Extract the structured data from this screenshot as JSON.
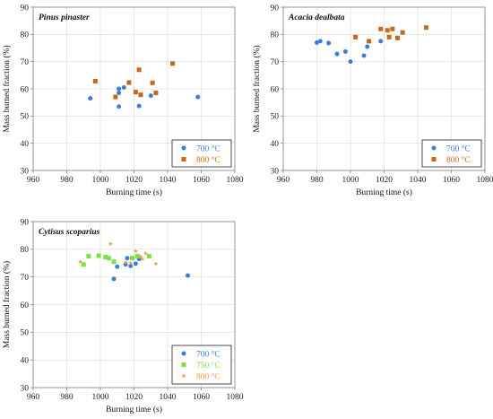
{
  "chart_data": [
    {
      "type": "scatter",
      "title": "Pinus pinaster",
      "xlabel": "Burning time (s)",
      "ylabel": "Mass burned fraction (%)",
      "xlim": [
        960,
        1080
      ],
      "ylim": [
        30,
        90
      ],
      "xticks": [
        "960",
        "980",
        "1000",
        "1020",
        "1040",
        "1060",
        "1080"
      ],
      "yticks": [
        "30",
        "40",
        "50",
        "60",
        "70",
        "80",
        "90"
      ],
      "grid": true,
      "legend_position": "bottom-right",
      "series": [
        {
          "name": "700 °C",
          "color": "#3a7de0",
          "marker": "circle",
          "points": [
            [
              994,
              56.5
            ],
            [
              1011,
              58.5
            ],
            [
              1011,
              60
            ],
            [
              1011,
              53.5
            ],
            [
              1014,
              60.5
            ],
            [
              1023,
              53.7
            ],
            [
              1030,
              57.5
            ],
            [
              1058,
              57
            ]
          ]
        },
        {
          "name": "800 °C",
          "color": "#c8661a",
          "marker": "square",
          "points": [
            [
              997,
              62.8
            ],
            [
              1009,
              57
            ],
            [
              1017,
              62.3
            ],
            [
              1021,
              58.8
            ],
            [
              1023,
              67
            ],
            [
              1024,
              57.8
            ],
            [
              1031,
              62.2
            ],
            [
              1033,
              58.5
            ],
            [
              1043,
              69.3
            ]
          ]
        }
      ]
    },
    {
      "type": "scatter",
      "title": "Acacia dealbata",
      "xlabel": "Burning time (s)",
      "ylabel": "Mass burned fraction (%)",
      "xlim": [
        960,
        1080
      ],
      "ylim": [
        30,
        90
      ],
      "xticks": [
        "960",
        "980",
        "1000",
        "1020",
        "1040",
        "1060",
        "1080"
      ],
      "yticks": [
        "30",
        "40",
        "50",
        "60",
        "70",
        "80",
        "90"
      ],
      "grid": true,
      "legend_position": "bottom-right",
      "series": [
        {
          "name": "700 °C",
          "color": "#3a7de0",
          "marker": "circle",
          "points": [
            [
              980,
              77
            ],
            [
              982,
              77.5
            ],
            [
              987,
              76.8
            ],
            [
              992,
              72.8
            ],
            [
              997,
              73.7
            ],
            [
              1000,
              70
            ],
            [
              1008,
              72.2
            ],
            [
              1010,
              75.5
            ],
            [
              1018,
              77.5
            ]
          ]
        },
        {
          "name": "800 °C",
          "color": "#c8661a",
          "marker": "square",
          "points": [
            [
              1003,
              79
            ],
            [
              1011,
              77.5
            ],
            [
              1018,
              82
            ],
            [
              1022,
              81.5
            ],
            [
              1023,
              79
            ],
            [
              1025,
              82
            ],
            [
              1028,
              78.7
            ],
            [
              1031,
              80.7
            ],
            [
              1045,
              82.5
            ]
          ]
        }
      ]
    },
    {
      "type": "scatter",
      "title": "Cytisus scoparius",
      "xlabel": "Burning time (s)",
      "ylabel": "Mass burned fraction (%)",
      "xlim": [
        960,
        1080
      ],
      "ylim": [
        30,
        90
      ],
      "xticks": [
        "960",
        "980",
        "1000",
        "1020",
        "1040",
        "1060",
        "1080"
      ],
      "yticks": [
        "30",
        "40",
        "50",
        "60",
        "70",
        "80",
        "90"
      ],
      "grid": true,
      "legend_position": "bottom-right",
      "series": [
        {
          "name": "700 °C",
          "color": "#3a7de0",
          "marker": "circle",
          "points": [
            [
              1008,
              69.3
            ],
            [
              1010,
              73.7
            ],
            [
              1015,
              74.5
            ],
            [
              1016,
              76.8
            ],
            [
              1018,
              74
            ],
            [
              1021,
              74.8
            ],
            [
              1023,
              76.5
            ],
            [
              1052,
              70.5
            ]
          ]
        },
        {
          "name": "750 °C",
          "color": "#7de040",
          "marker": "square",
          "points": [
            [
              990,
              74.5
            ],
            [
              993,
              77.5
            ],
            [
              999,
              77.7
            ],
            [
              1003,
              77.2
            ],
            [
              1005,
              76.8
            ],
            [
              1008,
              75.5
            ],
            [
              1019,
              76.8
            ],
            [
              1022,
              77.5
            ],
            [
              1029,
              77.5
            ]
          ]
        },
        {
          "name": "800 °C",
          "color": "#f0a040",
          "marker": "star",
          "points": [
            [
              988,
              75.5
            ],
            [
              1006,
              82
            ],
            [
              1015,
              75.3
            ],
            [
              1018,
              75
            ],
            [
              1021,
              79.3
            ],
            [
              1024,
              77.3
            ],
            [
              1025,
              76.5
            ],
            [
              1027,
              78.5
            ],
            [
              1033,
              74.8
            ]
          ]
        }
      ]
    }
  ]
}
